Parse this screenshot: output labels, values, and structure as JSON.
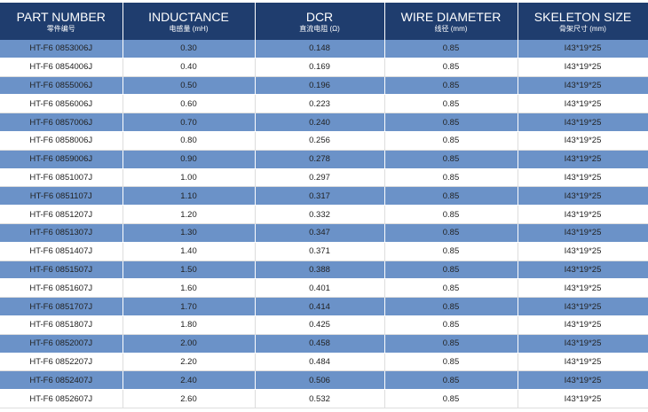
{
  "header": {
    "columns": [
      {
        "title": "PART NUMBER",
        "sub": "零件编号"
      },
      {
        "title": "INDUCTANCE",
        "sub": "电感量 (mH)"
      },
      {
        "title": "DCR",
        "sub": "直流电阻 (Ω)"
      },
      {
        "title": "WIRE DIAMETER",
        "sub": "线径 (mm)"
      },
      {
        "title": "SKELETON SIZE",
        "sub": "骨架尺寸 (mm)"
      }
    ]
  },
  "table": {
    "rows": [
      [
        "HT-F6 0853006J",
        "0.30",
        "0.148",
        "0.85",
        "I43*19*25"
      ],
      [
        "HT-F6 0854006J",
        "0.40",
        "0.169",
        "0.85",
        "I43*19*25"
      ],
      [
        "HT-F6 0855006J",
        "0.50",
        "0.196",
        "0.85",
        "I43*19*25"
      ],
      [
        "HT-F6 0856006J",
        "0.60",
        "0.223",
        "0.85",
        "I43*19*25"
      ],
      [
        "HT-F6 0857006J",
        "0.70",
        "0.240",
        "0.85",
        "I43*19*25"
      ],
      [
        "HT-F6 0858006J",
        "0.80",
        "0.256",
        "0.85",
        "I43*19*25"
      ],
      [
        "HT-F6 0859006J",
        "0.90",
        "0.278",
        "0.85",
        "I43*19*25"
      ],
      [
        "HT-F6 0851007J",
        "1.00",
        "0.297",
        "0.85",
        "I43*19*25"
      ],
      [
        "HT-F6 0851107J",
        "1.10",
        "0.317",
        "0.85",
        "I43*19*25"
      ],
      [
        "HT-F6 0851207J",
        "1.20",
        "0.332",
        "0.85",
        "I43*19*25"
      ],
      [
        "HT-F6 0851307J",
        "1.30",
        "0.347",
        "0.85",
        "I43*19*25"
      ],
      [
        "HT-F6 0851407J",
        "1.40",
        "0.371",
        "0.85",
        "I43*19*25"
      ],
      [
        "HT-F6 0851507J",
        "1.50",
        "0.388",
        "0.85",
        "I43*19*25"
      ],
      [
        "HT-F6 0851607J",
        "1.60",
        "0.401",
        "0.85",
        "I43*19*25"
      ],
      [
        "HT-F6 0851707J",
        "1.70",
        "0.414",
        "0.85",
        "I43*19*25"
      ],
      [
        "HT-F6 0851807J",
        "1.80",
        "0.425",
        "0.85",
        "I43*19*25"
      ],
      [
        "HT-F6 0852007J",
        "2.00",
        "0.458",
        "0.85",
        "I43*19*25"
      ],
      [
        "HT-F6 0852207J",
        "2.20",
        "0.484",
        "0.85",
        "I43*19*25"
      ],
      [
        "HT-F6 0852407J",
        "2.40",
        "0.506",
        "0.85",
        "I43*19*25"
      ],
      [
        "HT-F6 0852607J",
        "2.60",
        "0.532",
        "0.85",
        "I43*19*25"
      ]
    ]
  }
}
